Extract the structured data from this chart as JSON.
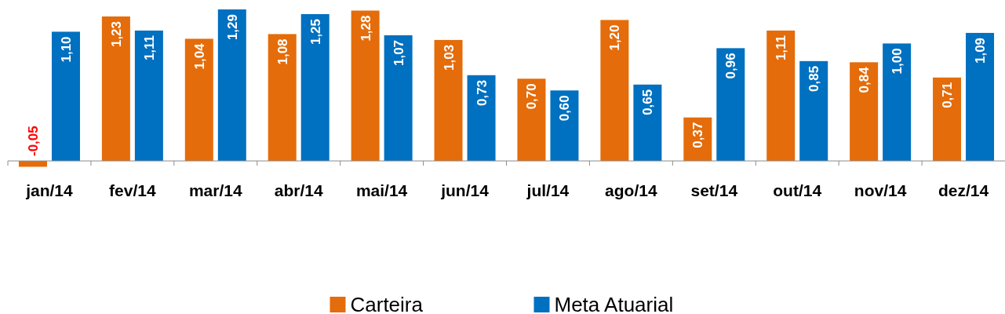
{
  "chart_data": {
    "type": "bar",
    "categories": [
      "jan/14",
      "fev/14",
      "mar/14",
      "abr/14",
      "mai/14",
      "jun/14",
      "jul/14",
      "ago/14",
      "set/14",
      "out/14",
      "nov/14",
      "dez/14"
    ],
    "series": [
      {
        "name": "Carteira",
        "color": "#e46c0a",
        "values": [
          -0.05,
          1.23,
          1.04,
          1.08,
          1.28,
          1.03,
          0.7,
          1.2,
          0.37,
          1.11,
          0.84,
          0.71
        ],
        "value_labels": [
          "-0,05",
          "1,23",
          "1,04",
          "1,08",
          "1,28",
          "1,03",
          "0,70",
          "1,20",
          "0,37",
          "1,11",
          "0,84",
          "0,71"
        ]
      },
      {
        "name": "Meta Atuarial",
        "color": "#0070c0",
        "values": [
          1.1,
          1.11,
          1.29,
          1.25,
          1.07,
          0.73,
          0.6,
          0.65,
          0.96,
          0.85,
          1.0,
          1.09
        ],
        "value_labels": [
          "1,10",
          "1,11",
          "1,29",
          "1,25",
          "1,07",
          "0,73",
          "0,60",
          "0,65",
          "0,96",
          "0,85",
          "1,00",
          "1,09"
        ]
      }
    ],
    "legend": "bottom"
  }
}
